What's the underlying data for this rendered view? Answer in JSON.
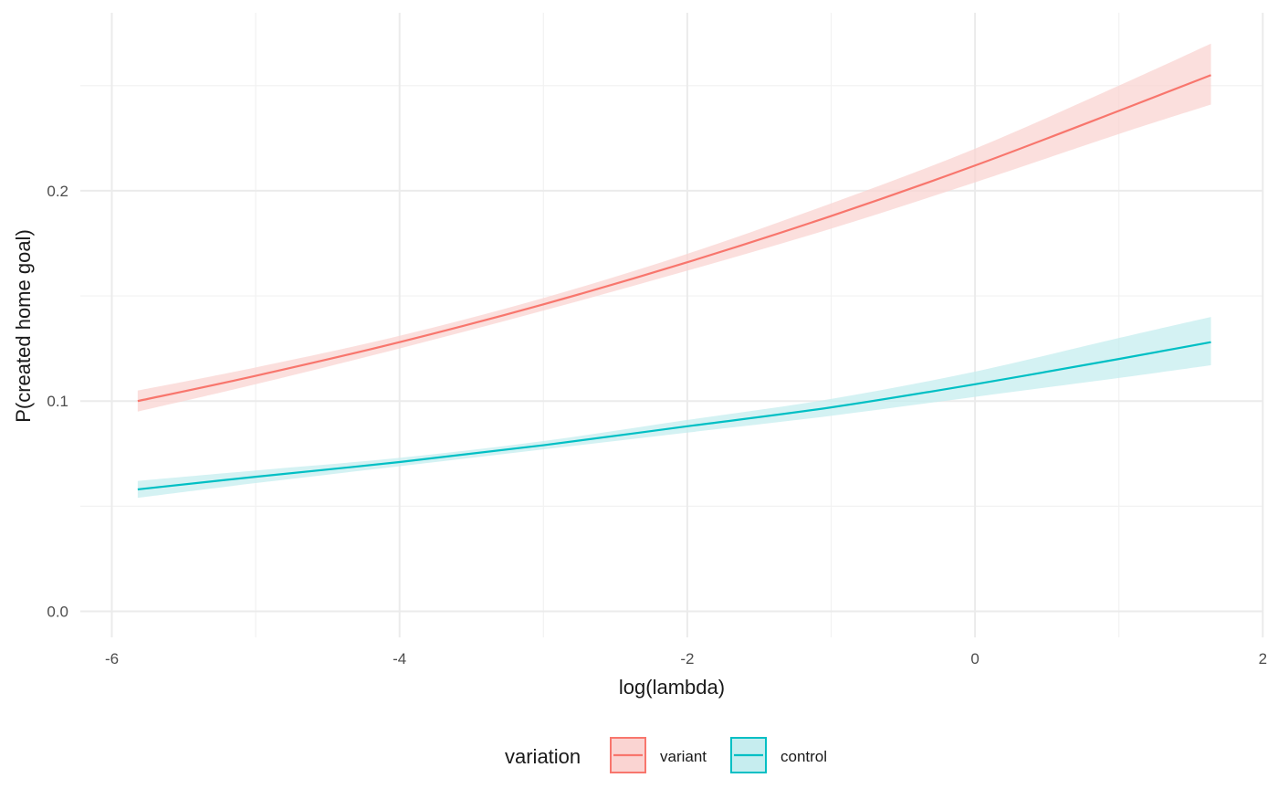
{
  "chart_data": {
    "type": "line",
    "title": "",
    "xlabel": "log(lambda)",
    "ylabel": "P(created home goal)",
    "xlim": [
      -6.0,
      2.0
    ],
    "ylim": [
      0.0,
      0.25
    ],
    "x_ticks": [
      -6,
      -4,
      -2,
      0,
      2
    ],
    "x_tick_labels": [
      "-6",
      "-4",
      "-2",
      "0",
      "2"
    ],
    "y_ticks": [
      0.0,
      0.1,
      0.2
    ],
    "y_tick_labels": [
      "0.0",
      "0.1",
      "0.2"
    ],
    "grid": true,
    "legend": {
      "title": "variation",
      "placement": "bottom",
      "entries": [
        "variant",
        "control"
      ]
    },
    "x": [
      -5.82,
      -5.0,
      -4.0,
      -3.0,
      -2.0,
      -1.0,
      0.0,
      1.0,
      1.64
    ],
    "series": [
      {
        "name": "variant",
        "color": "#F8766D",
        "band_color": "#FAD4D2",
        "values": [
          0.1,
          0.112,
          0.128,
          0.146,
          0.166,
          0.188,
          0.212,
          0.238,
          0.255
        ],
        "lower": [
          0.095,
          0.108,
          0.125,
          0.143,
          0.162,
          0.182,
          0.204,
          0.227,
          0.241
        ],
        "upper": [
          0.105,
          0.116,
          0.131,
          0.149,
          0.17,
          0.194,
          0.22,
          0.25,
          0.27
        ]
      },
      {
        "name": "control",
        "color": "#00BFC4",
        "band_color": "#C6EDEF",
        "values": [
          0.058,
          0.064,
          0.071,
          0.079,
          0.088,
          0.097,
          0.108,
          0.12,
          0.128
        ],
        "lower": [
          0.054,
          0.061,
          0.069,
          0.077,
          0.085,
          0.093,
          0.102,
          0.111,
          0.117
        ],
        "upper": [
          0.062,
          0.067,
          0.073,
          0.081,
          0.091,
          0.101,
          0.114,
          0.13,
          0.14
        ]
      }
    ]
  }
}
